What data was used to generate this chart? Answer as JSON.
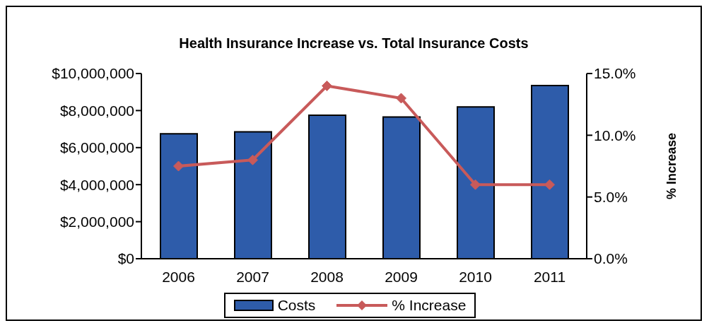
{
  "chart_data": {
    "type": "bar",
    "title": "Health Insurance Increase vs. Total Insurance Costs",
    "y2label": "% Increase",
    "categories": [
      "2006",
      "2007",
      "2008",
      "2009",
      "2010",
      "2011"
    ],
    "series": [
      {
        "name": "Costs",
        "color": "#2e5caa",
        "values": [
          6750000,
          6850000,
          7750000,
          7650000,
          8200000,
          9350000
        ]
      },
      {
        "name": "% Increase",
        "type": "line",
        "axis": "y2",
        "color": "#c85a5a",
        "values": [
          7.5,
          8.0,
          14.0,
          13.0,
          6.0,
          6.0
        ]
      }
    ],
    "ylim": [
      0,
      10000000
    ],
    "yticks": [
      {
        "value": 0,
        "label": "$0"
      },
      {
        "value": 2000000,
        "label": "$2,000,000"
      },
      {
        "value": 4000000,
        "label": "$4,000,000"
      },
      {
        "value": 6000000,
        "label": "$6,000,000"
      },
      {
        "value": 8000000,
        "label": "$8,000,000"
      },
      {
        "value": 10000000,
        "label": "$10,000,000"
      }
    ],
    "y2lim": [
      0,
      15
    ],
    "y2ticks": [
      {
        "value": 0,
        "label": "0.0%"
      },
      {
        "value": 5,
        "label": "5.0%"
      },
      {
        "value": 10,
        "label": "10.0%"
      },
      {
        "value": 15,
        "label": "15.0%"
      }
    ],
    "legend": "bottom",
    "marker": "diamond"
  }
}
